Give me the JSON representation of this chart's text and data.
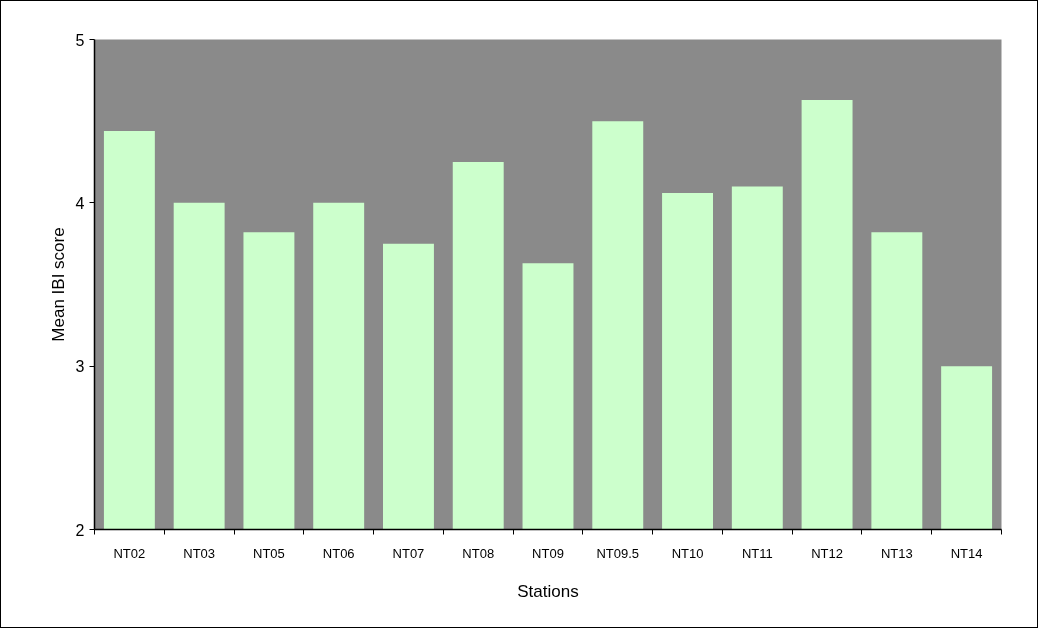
{
  "chart_data": {
    "type": "bar",
    "xlabel": "Stations",
    "ylabel": "Mean IBI score",
    "categories": [
      "NT02",
      "NT03",
      "NT05",
      "NT06",
      "NT07",
      "NT08",
      "NT09",
      "NT09.5",
      "NT10",
      "NT11",
      "NT12",
      "NT13",
      "NT14"
    ],
    "values": [
      4.44,
      4.0,
      3.82,
      4.0,
      3.75,
      4.25,
      3.63,
      4.5,
      4.06,
      4.1,
      4.63,
      3.82,
      3.0
    ],
    "color": "#ccffcc",
    "ylim": [
      2,
      5
    ],
    "yticks": [
      2,
      3,
      4,
      5
    ],
    "grid": false
  }
}
